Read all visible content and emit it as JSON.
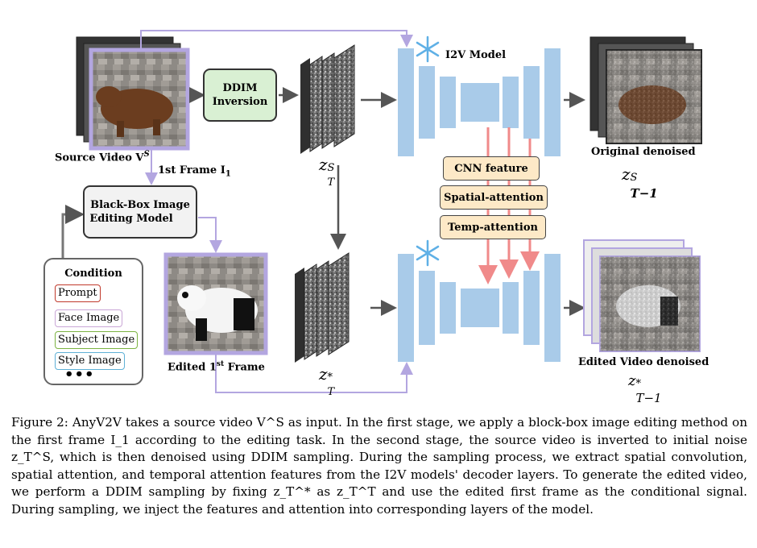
{
  "figure": {
    "labels": {
      "source_video": "Source Video V",
      "source_video_sup": "S",
      "first_frame": "1st Frame I",
      "first_frame_sub": "1",
      "ddim_line1": "DDIM",
      "ddim_line2": "Inversion",
      "blackbox_line1": "Black-Box Image",
      "blackbox_line2": "Editing Model",
      "edited_first_frame": "Edited 1",
      "edited_first_frame_sup": "st",
      "edited_first_frame_tail": " Frame",
      "i2v_model": "I2V Model",
      "original_denoised": "Original denoised",
      "edited_video_denoised": "Edited Video denoised"
    },
    "math": {
      "zTS": "z",
      "zTS_sup": "S",
      "zTS_sub": "T",
      "zTstar": "z",
      "zTstar_sup": "*",
      "zTstar_sub": "T",
      "zT1S": "z",
      "zT1S_sup": "S",
      "zT1S_sub": "T−1",
      "zT1star": "z",
      "zT1star_sup": "*",
      "zT1star_sub": "T−1"
    },
    "features": [
      "CNN feature",
      "Spatial-attention",
      "Temp-attention"
    ],
    "condition": {
      "title": "Condition",
      "items": [
        {
          "label": "Prompt",
          "color": "#c0392b"
        },
        {
          "label": "Face Image",
          "color": "#c9a6d6"
        },
        {
          "label": "Subject Image",
          "color": "#7cb342"
        },
        {
          "label": "Style Image",
          "color": "#5fb0d6"
        }
      ],
      "more": "•••"
    },
    "colors": {
      "unet_block": "#a9cbe9",
      "connector": "#b3a6e0",
      "feature_arrow": "#f08a8a",
      "frame_border": "#b3a6e0"
    }
  },
  "caption": {
    "text": "Figure 2: AnyV2V takes a source video V^S as input. In the first stage, we apply a block-box image editing method on the first frame I_1 according to the editing task. In the second stage, the source video is inverted to initial noise z_T^S, which is then denoised using DDIM sampling. During the sampling process, we extract spatial convolution, spatial attention, and temporal attention features from the I2V models' decoder layers. To generate the edited video, we perform a DDIM sampling by fixing z_T^* as z_T^T and use the edited first frame as the conditional signal. During sampling, we inject the features and attention into corresponding layers of the model."
  }
}
